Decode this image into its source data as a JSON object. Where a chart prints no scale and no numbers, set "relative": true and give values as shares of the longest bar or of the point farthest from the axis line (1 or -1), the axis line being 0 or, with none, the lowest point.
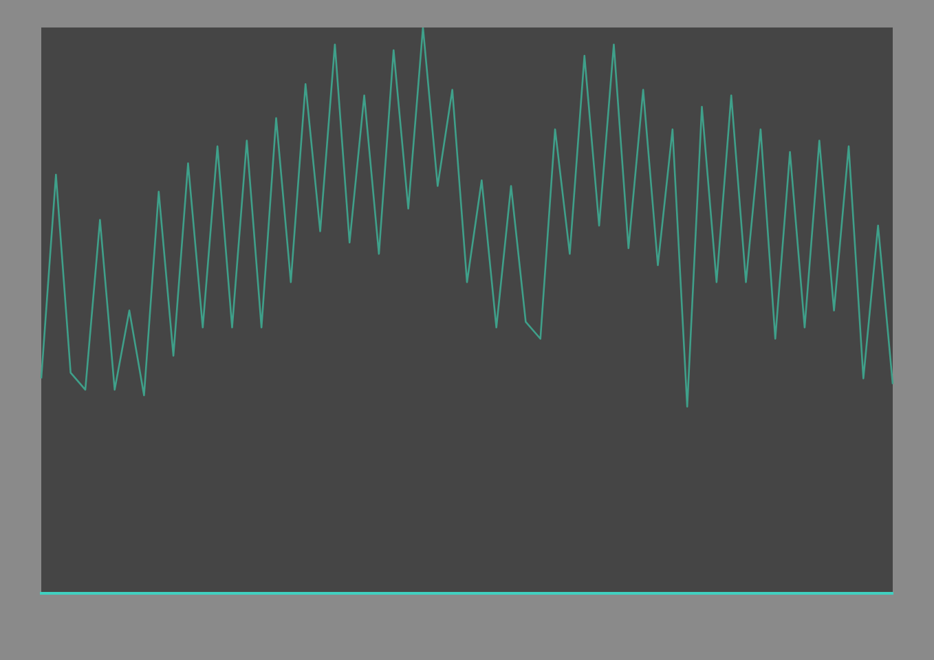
{
  "chart_data": {
    "type": "line",
    "relative": true,
    "marker": "none",
    "line_style": "solid",
    "legend": false,
    "grid": false,
    "categories": [
      null,
      null,
      null,
      null,
      null,
      null,
      null,
      null,
      null,
      null,
      null,
      null,
      null,
      null,
      null,
      null,
      null,
      null,
      null,
      null,
      null,
      null,
      null,
      null,
      null,
      null,
      null,
      null,
      null,
      null,
      null,
      null,
      null,
      null,
      null,
      null,
      null,
      null,
      null,
      null,
      null,
      null,
      null,
      null,
      null,
      null,
      null,
      null,
      null,
      null,
      null,
      null,
      null,
      null,
      null,
      null,
      null,
      null,
      null
    ],
    "series": [
      {
        "color": "#3fa08a",
        "values": [
          0.38,
          0.74,
          0.39,
          0.36,
          0.66,
          0.36,
          0.5,
          0.35,
          0.71,
          0.42,
          0.76,
          0.47,
          0.79,
          0.47,
          0.8,
          0.47,
          0.84,
          0.55,
          0.9,
          0.64,
          0.97,
          0.62,
          0.88,
          0.6,
          0.96,
          0.68,
          1,
          0.72,
          0.89,
          0.55,
          0.73,
          0.47,
          0.72,
          0.48,
          0.45,
          0.82,
          0.6,
          0.95,
          0.65,
          0.97,
          0.61,
          0.89,
          0.58,
          0.82,
          0.33,
          0.86,
          0.55,
          0.88,
          0.55,
          0.82,
          0.45,
          0.78,
          0.47,
          0.8,
          0.5,
          0.79,
          0.38,
          0.65,
          0.37
        ]
      }
    ]
  }
}
